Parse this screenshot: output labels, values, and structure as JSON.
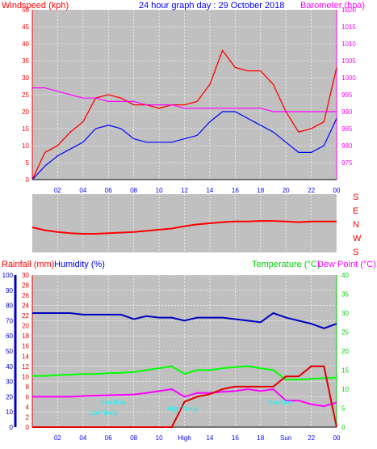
{
  "header": {
    "left_label": "Windspeed (kph)",
    "title": "24 hour graph day : 29 October 2018",
    "right_label": "Barometer (hpa)"
  },
  "direction_labels": [
    "S",
    "E",
    "N",
    "W",
    "S"
  ],
  "lower_header": {
    "rainfall_label": "Rainfall (mm)",
    "humidity_label": "Humidity (%)",
    "temperature_label": "Temperature (°C)",
    "dewpoint_label": "Dew Point (°C)"
  },
  "annotations": {
    "sun_rise": "Sun Rise",
    "sun_set": "Sun Set",
    "low_temp": "Low Temp",
    "high_temp": "High Temp",
    "high_axis": "High",
    "sun_axis": "Sun"
  },
  "colors": {
    "plot_bg": "#c0c0c0",
    "windspeed": "#ff0000",
    "gust_avg": "#0000ff",
    "barometer": "#ff00ff",
    "humidity": "#0000c0",
    "temperature": "#00ff00",
    "dewpoint": "#ff00ff",
    "rainfall": "#e00000",
    "annotation": "#00ffff"
  },
  "chart_data": [
    {
      "type": "line",
      "name": "wind-barometer",
      "x_ticks": [
        "02",
        "04",
        "06",
        "08",
        "10",
        "12",
        "14",
        "16",
        "18",
        "20",
        "22",
        "00"
      ],
      "left_axis": {
        "label": "Windspeed (kph)",
        "ticks": [
          0,
          5,
          10,
          15,
          20,
          25,
          30,
          35,
          40,
          45,
          50
        ],
        "ylim": [
          0,
          50
        ]
      },
      "right_axis": {
        "label": "Barometer (hpa)",
        "ticks": [
          975,
          980,
          985,
          990,
          995,
          1000,
          1005,
          1010,
          1015,
          1020
        ],
        "ylim": [
          970,
          1020
        ]
      },
      "x": [
        0,
        1,
        2,
        3,
        4,
        5,
        6,
        7,
        8,
        9,
        10,
        11,
        12,
        13,
        14,
        15,
        16,
        17,
        18,
        19,
        20,
        21,
        22,
        23,
        24
      ],
      "series": [
        {
          "axis": "left",
          "color": "#ff0000",
          "values": [
            0,
            8,
            10,
            14,
            17,
            24,
            25,
            24,
            22,
            22,
            21,
            22,
            22,
            23,
            28,
            38,
            33,
            32,
            32,
            28,
            20,
            14,
            15,
            17,
            33
          ]
        },
        {
          "axis": "left",
          "color": "#0000ff",
          "values": [
            0,
            4,
            7,
            9,
            11,
            15,
            16,
            15,
            12,
            11,
            11,
            11,
            12,
            13,
            17,
            20,
            20,
            18,
            16,
            14,
            11,
            8,
            8,
            10,
            18
          ]
        },
        {
          "axis": "right",
          "color": "#ff00ff",
          "values": [
            997,
            997,
            996,
            995,
            994,
            994,
            993,
            993,
            993,
            992,
            992,
            992,
            991,
            991,
            991,
            991,
            991,
            991,
            991,
            990,
            990,
            990,
            990,
            990,
            990
          ]
        }
      ]
    },
    {
      "type": "line",
      "name": "wind-direction",
      "x": [
        0,
        1,
        2,
        3,
        4,
        5,
        6,
        7,
        8,
        9,
        10,
        11,
        12,
        13,
        14,
        15,
        16,
        17,
        18,
        19,
        20,
        21,
        22,
        23,
        24
      ],
      "series": [
        {
          "color": "#ff0000",
          "values": [
            0.43,
            0.38,
            0.35,
            0.33,
            0.32,
            0.32,
            0.33,
            0.34,
            0.35,
            0.37,
            0.39,
            0.41,
            0.45,
            0.48,
            0.5,
            0.52,
            0.53,
            0.53,
            0.54,
            0.54,
            0.53,
            0.52,
            0.53,
            0.53,
            0.53
          ]
        }
      ]
    },
    {
      "type": "line",
      "name": "temp-humidity-rain",
      "x_ticks": [
        "02",
        "04",
        "06",
        "08",
        "10",
        "High",
        "14",
        "16",
        "18",
        "Sun",
        "22",
        "00"
      ],
      "humidity_axis": {
        "ticks": [
          0,
          10,
          20,
          30,
          40,
          50,
          60,
          70,
          80,
          90,
          100
        ],
        "ylim": [
          0,
          100
        ]
      },
      "rainfall_axis": {
        "ticks": [
          0,
          2,
          4,
          6,
          8,
          10,
          12,
          14,
          16,
          18,
          20,
          22,
          24,
          26,
          28,
          30
        ],
        "ylim": [
          0,
          30
        ]
      },
      "temperature_axis": {
        "ticks": [
          0,
          5,
          10,
          15,
          20,
          25,
          30,
          35,
          40
        ],
        "ylim": [
          0,
          40
        ]
      },
      "x": [
        0,
        1,
        2,
        3,
        4,
        5,
        6,
        7,
        8,
        9,
        10,
        11,
        12,
        13,
        14,
        15,
        16,
        17,
        18,
        19,
        20,
        21,
        22,
        23,
        24
      ],
      "series": [
        {
          "axis": "humidity",
          "color": "#0000c0",
          "values": [
            75,
            75,
            75,
            75,
            74,
            74,
            74,
            74,
            71,
            73,
            72,
            72,
            70,
            72,
            72,
            72,
            71,
            70,
            69,
            75,
            72,
            70,
            68,
            65,
            68
          ]
        },
        {
          "axis": "temperature",
          "color": "#00ff00",
          "values": [
            13.5,
            13.5,
            13.7,
            13.8,
            14,
            14,
            14.2,
            14.3,
            14.5,
            15,
            15.5,
            16,
            14,
            15,
            15,
            15.5,
            15.8,
            16,
            15.5,
            15,
            12.5,
            12.5,
            12.7,
            12.9,
            13
          ]
        },
        {
          "axis": "temperature",
          "color": "#ff00ff",
          "values": [
            8,
            8,
            8,
            8,
            8.2,
            8.3,
            8.4,
            8.5,
            8.6,
            9,
            9.5,
            10,
            8,
            9,
            9,
            9.3,
            9.5,
            10,
            9.5,
            10,
            7,
            7,
            6,
            5.5,
            6.5
          ]
        },
        {
          "axis": "rainfall",
          "color": "#e00000",
          "values": [
            0,
            0,
            0,
            0,
            0,
            0,
            0,
            0,
            0,
            0,
            0,
            0,
            5,
            6,
            6.5,
            7.5,
            8,
            8,
            8,
            8,
            10,
            10,
            12,
            12,
            0
          ]
        }
      ]
    }
  ]
}
